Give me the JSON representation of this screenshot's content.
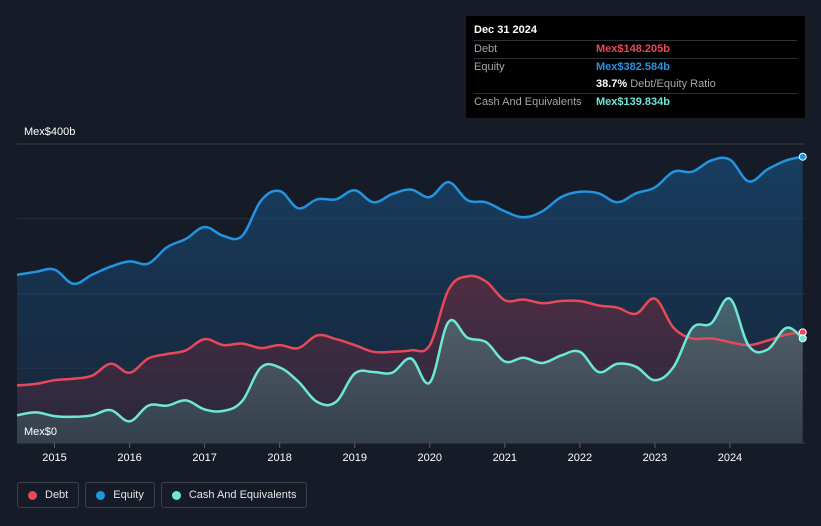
{
  "colors": {
    "debt": "#e64a5a",
    "equity": "#2394df",
    "cash": "#6ee7d6"
  },
  "tooltip": {
    "date": "Dec 31 2024",
    "debt_label": "Debt",
    "debt_value": "Mex$148.205b",
    "equity_label": "Equity",
    "equity_value": "Mex$382.584b",
    "ratio_value": "38.7%",
    "ratio_label": "Debt/Equity Ratio",
    "cash_label": "Cash And Equivalents",
    "cash_value": "Mex$139.834b"
  },
  "legend": {
    "debt": "Debt",
    "equity": "Equity",
    "cash": "Cash And Equivalents"
  },
  "chart_data": {
    "type": "area",
    "y_top_label": "Mex$400b",
    "y_bottom_label": "Mex$0",
    "ylim": [
      0,
      400
    ],
    "xlim": [
      2014.5,
      2025.0
    ],
    "x_ticks": [
      "2015",
      "2016",
      "2017",
      "2018",
      "2019",
      "2020",
      "2021",
      "2022",
      "2023",
      "2024"
    ],
    "grid": true,
    "legend_position": "bottom-left",
    "series": [
      {
        "name": "Equity",
        "color_key": "equity",
        "points": [
          [
            2014.5,
            225
          ],
          [
            2014.75,
            229
          ],
          [
            2015.0,
            232
          ],
          [
            2015.25,
            213
          ],
          [
            2015.5,
            225
          ],
          [
            2015.75,
            236
          ],
          [
            2016.0,
            243
          ],
          [
            2016.25,
            240
          ],
          [
            2016.5,
            262
          ],
          [
            2016.75,
            273
          ],
          [
            2017.0,
            289
          ],
          [
            2017.25,
            277
          ],
          [
            2017.5,
            277
          ],
          [
            2017.75,
            324
          ],
          [
            2018.0,
            337
          ],
          [
            2018.25,
            314
          ],
          [
            2018.5,
            326
          ],
          [
            2018.75,
            326
          ],
          [
            2019.0,
            338
          ],
          [
            2019.25,
            322
          ],
          [
            2019.5,
            333
          ],
          [
            2019.75,
            339
          ],
          [
            2020.0,
            329
          ],
          [
            2020.25,
            349
          ],
          [
            2020.5,
            325
          ],
          [
            2020.75,
            322
          ],
          [
            2021.0,
            310
          ],
          [
            2021.25,
            302
          ],
          [
            2021.5,
            310
          ],
          [
            2021.75,
            329
          ],
          [
            2022.0,
            336
          ],
          [
            2022.25,
            334
          ],
          [
            2022.5,
            322
          ],
          [
            2022.75,
            334
          ],
          [
            2023.0,
            342
          ],
          [
            2023.25,
            363
          ],
          [
            2023.5,
            363
          ],
          [
            2023.75,
            378
          ],
          [
            2024.0,
            379
          ],
          [
            2024.25,
            350
          ],
          [
            2024.5,
            366
          ],
          [
            2024.75,
            378
          ],
          [
            2024.97,
            383
          ]
        ]
      },
      {
        "name": "Debt",
        "color_key": "debt",
        "points": [
          [
            2014.5,
            77
          ],
          [
            2014.75,
            79
          ],
          [
            2015.0,
            84
          ],
          [
            2015.25,
            86
          ],
          [
            2015.5,
            90
          ],
          [
            2015.75,
            106
          ],
          [
            2016.0,
            94
          ],
          [
            2016.25,
            113
          ],
          [
            2016.5,
            119
          ],
          [
            2016.75,
            124
          ],
          [
            2017.0,
            139
          ],
          [
            2017.25,
            131
          ],
          [
            2017.5,
            133
          ],
          [
            2017.75,
            127
          ],
          [
            2018.0,
            131
          ],
          [
            2018.25,
            127
          ],
          [
            2018.5,
            144
          ],
          [
            2018.75,
            139
          ],
          [
            2019.0,
            131
          ],
          [
            2019.25,
            122
          ],
          [
            2019.5,
            122
          ],
          [
            2019.75,
            124
          ],
          [
            2020.0,
            131
          ],
          [
            2020.25,
            205
          ],
          [
            2020.5,
            223
          ],
          [
            2020.75,
            216
          ],
          [
            2021.0,
            191
          ],
          [
            2021.25,
            192
          ],
          [
            2021.5,
            187
          ],
          [
            2021.75,
            190
          ],
          [
            2022.0,
            190
          ],
          [
            2022.25,
            184
          ],
          [
            2022.5,
            181
          ],
          [
            2022.75,
            173
          ],
          [
            2023.0,
            193
          ],
          [
            2023.25,
            154
          ],
          [
            2023.5,
            140
          ],
          [
            2023.75,
            140
          ],
          [
            2024.0,
            135
          ],
          [
            2024.25,
            131
          ],
          [
            2024.5,
            137
          ],
          [
            2024.75,
            145
          ],
          [
            2024.97,
            148
          ]
        ]
      },
      {
        "name": "Cash And Equivalents",
        "color_key": "cash",
        "points": [
          [
            2014.5,
            37
          ],
          [
            2014.75,
            41
          ],
          [
            2015.0,
            36
          ],
          [
            2015.25,
            35
          ],
          [
            2015.5,
            37
          ],
          [
            2015.75,
            44
          ],
          [
            2016.0,
            29
          ],
          [
            2016.25,
            50
          ],
          [
            2016.5,
            50
          ],
          [
            2016.75,
            57
          ],
          [
            2017.0,
            45
          ],
          [
            2017.25,
            43
          ],
          [
            2017.5,
            56
          ],
          [
            2017.75,
            101
          ],
          [
            2018.0,
            101
          ],
          [
            2018.25,
            82
          ],
          [
            2018.5,
            55
          ],
          [
            2018.75,
            55
          ],
          [
            2019.0,
            93
          ],
          [
            2019.25,
            95
          ],
          [
            2019.5,
            94
          ],
          [
            2019.75,
            113
          ],
          [
            2020.0,
            81
          ],
          [
            2020.25,
            162
          ],
          [
            2020.5,
            141
          ],
          [
            2020.75,
            135
          ],
          [
            2021.0,
            109
          ],
          [
            2021.25,
            114
          ],
          [
            2021.5,
            107
          ],
          [
            2021.75,
            117
          ],
          [
            2022.0,
            122
          ],
          [
            2022.25,
            95
          ],
          [
            2022.5,
            106
          ],
          [
            2022.75,
            102
          ],
          [
            2023.0,
            84
          ],
          [
            2023.25,
            102
          ],
          [
            2023.5,
            154
          ],
          [
            2023.75,
            160
          ],
          [
            2024.0,
            193
          ],
          [
            2024.25,
            130
          ],
          [
            2024.5,
            125
          ],
          [
            2024.75,
            154
          ],
          [
            2024.97,
            140
          ]
        ]
      }
    ]
  }
}
